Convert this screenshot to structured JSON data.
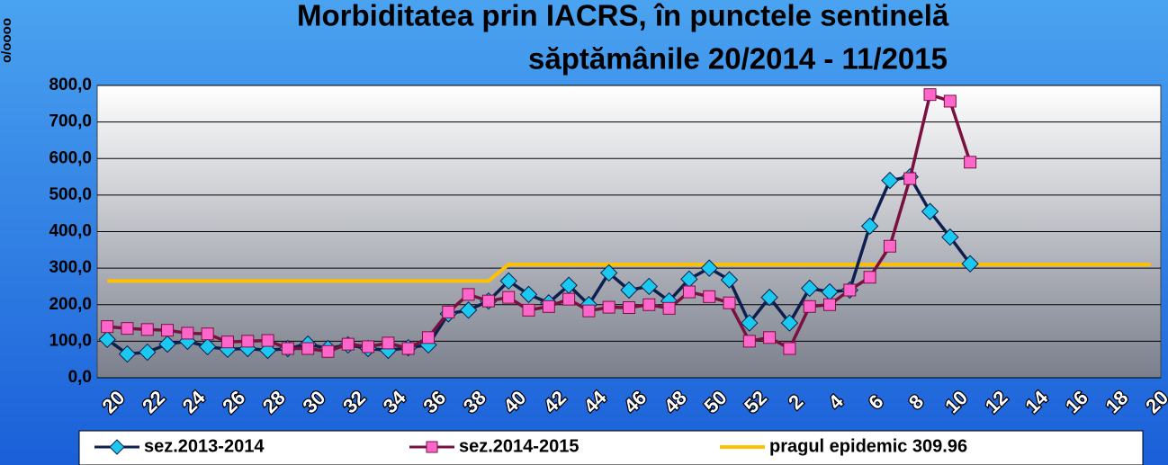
{
  "chart_data": {
    "type": "line",
    "title": "Morbiditatea prin IACRS, în punctele sentinelă",
    "subtitle": "săptămânile 20/2014 - 11/2015",
    "y_label": "o/oooo",
    "categories": [
      "20",
      null,
      "22",
      null,
      "24",
      null,
      "26",
      null,
      "28",
      null,
      "30",
      null,
      "32",
      null,
      "34",
      null,
      "36",
      null,
      "38",
      null,
      "40",
      null,
      "42",
      null,
      "44",
      null,
      "46",
      null,
      "48",
      null,
      "50",
      null,
      "52",
      null,
      "2",
      null,
      "4",
      null,
      "6",
      null,
      "8",
      null,
      "10",
      null,
      "12",
      null,
      "14",
      null,
      "16",
      null,
      "18",
      null,
      "20"
    ],
    "ylim": [
      0,
      800
    ],
    "yticks": [
      {
        "value": 0,
        "label": "0,0"
      },
      {
        "value": 100,
        "label": "100,0"
      },
      {
        "value": 200,
        "label": "200,0"
      },
      {
        "value": 300,
        "label": "300,0"
      },
      {
        "value": 400,
        "label": "400,0"
      },
      {
        "value": 500,
        "label": "500,0"
      },
      {
        "value": 600,
        "label": "600,0"
      },
      {
        "value": 700,
        "label": "700,0"
      },
      {
        "value": 800,
        "label": "800,0"
      }
    ],
    "grid": true,
    "series": [
      {
        "name": "sez.2013-2014",
        "color": "#0d1f4f",
        "marker": "diamond",
        "marker_color": "#1ac8f0",
        "values": [
          105,
          65,
          70,
          92,
          100,
          85,
          78,
          80,
          75,
          80,
          92,
          80,
          90,
          80,
          75,
          82,
          90,
          175,
          185,
          210,
          265,
          228,
          205,
          253,
          200,
          287,
          240,
          250,
          210,
          270,
          300,
          268,
          150,
          220,
          150,
          245,
          235,
          240,
          415,
          540,
          550,
          455,
          385,
          312,
          null,
          null,
          null,
          null,
          null,
          null,
          null,
          null,
          null
        ]
      },
      {
        "name": "sez.2014-2015",
        "color": "#7a1040",
        "marker": "square",
        "marker_color": "#ff66cc",
        "values": [
          140,
          135,
          132,
          130,
          122,
          120,
          98,
          100,
          102,
          80,
          80,
          72,
          92,
          85,
          95,
          80,
          110,
          180,
          228,
          210,
          220,
          185,
          195,
          215,
          183,
          193,
          192,
          200,
          190,
          235,
          222,
          205,
          100,
          110,
          80,
          195,
          200,
          240,
          275,
          360,
          545,
          775,
          757,
          590,
          null,
          null,
          null,
          null,
          null,
          null,
          null,
          null,
          null
        ]
      },
      {
        "name": "pragul epidemic 309.96",
        "color": "#ffc000",
        "marker": "none",
        "values": [
          265,
          265,
          265,
          265,
          265,
          265,
          265,
          265,
          265,
          265,
          265,
          265,
          265,
          265,
          265,
          265,
          265,
          265,
          265,
          265,
          309.96,
          309.96,
          309.96,
          309.96,
          309.96,
          309.96,
          309.96,
          309.96,
          309.96,
          309.96,
          309.96,
          309.96,
          309.96,
          309.96,
          309.96,
          309.96,
          309.96,
          309.96,
          309.96,
          309.96,
          309.96,
          309.96,
          309.96,
          309.96,
          309.96,
          309.96,
          309.96,
          309.96,
          309.96,
          309.96,
          309.96,
          309.96,
          309.96
        ]
      }
    ]
  }
}
